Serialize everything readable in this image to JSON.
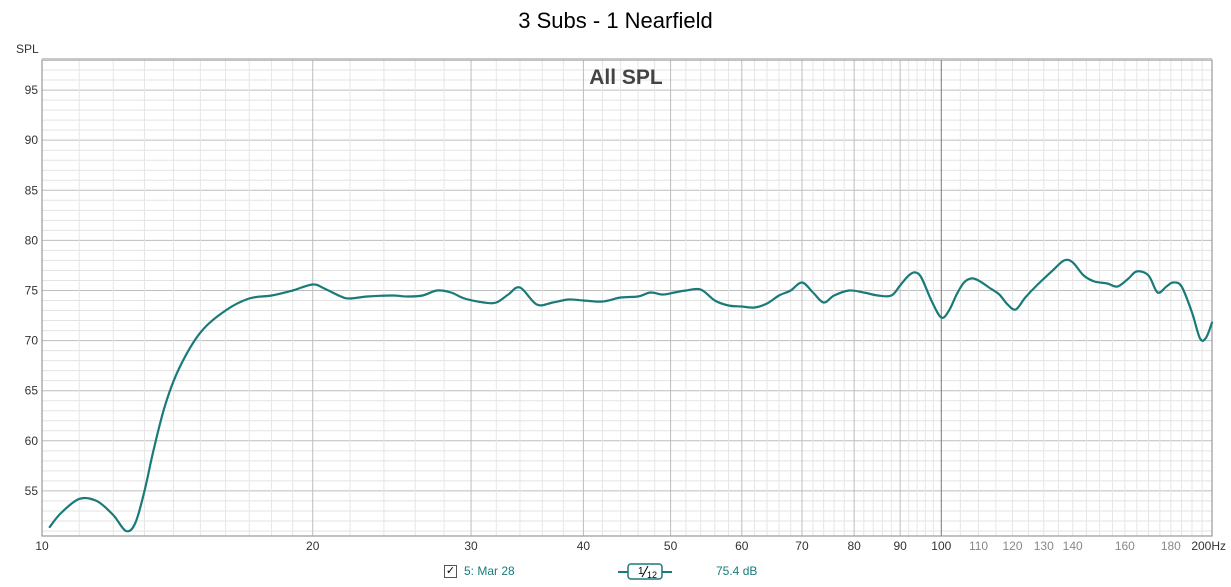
{
  "chart_data": {
    "type": "line",
    "title": "3 Subs - 1 Nearfield",
    "annotation": "All SPL",
    "ylabel": "SPL",
    "x_unit": "Hz",
    "x_scale": "log",
    "xlim": [
      10,
      200
    ],
    "ylim": [
      50.5,
      98
    ],
    "y_ticks": [
      55,
      60,
      65,
      70,
      75,
      80,
      85,
      90,
      95
    ],
    "x_ticks_major": [
      10,
      20,
      30,
      40,
      50,
      60,
      70,
      80,
      90,
      100,
      200
    ],
    "x_ticks_minor": [
      110,
      120,
      130,
      140,
      160,
      180
    ],
    "x_tick_labels": [
      "10",
      "20",
      "30",
      "40",
      "50",
      "60",
      "70",
      "80",
      "90",
      "100",
      "110",
      "120",
      "130",
      "140",
      "160",
      "180",
      "200Hz"
    ],
    "grid": true,
    "series": [
      {
        "name": "5: Mar 28",
        "color": "#1a7a7a",
        "x": [
          10.2,
          10.5,
          11.0,
          11.5,
          12.0,
          12.4,
          12.7,
          13.0,
          13.3,
          13.7,
          14.2,
          15.0,
          16.0,
          17.0,
          18.0,
          19.0,
          20.0,
          20.6,
          21.5,
          22.0,
          23.0,
          24.5,
          25.5,
          26.5,
          27.5,
          28.5,
          29.5,
          31.0,
          32.0,
          33.0,
          34.0,
          35.5,
          37.0,
          38.5,
          40.0,
          42.0,
          44.0,
          46.0,
          47.5,
          49.0,
          50.5,
          52.0,
          54.0,
          56.0,
          58.0,
          60.0,
          62.0,
          64.0,
          66.0,
          68.0,
          70.0,
          72.0,
          74.0,
          76.0,
          79.0,
          82.0,
          85.0,
          88.0,
          90.0,
          92.0,
          93.5,
          95.0,
          97.5,
          100.0,
          102.0,
          104.0,
          106.0,
          108.0,
          110.0,
          113.0,
          116.0,
          118.5,
          121.0,
          124.0,
          128.0,
          133.0,
          137.0,
          140.0,
          144.0,
          148.0,
          153.0,
          157.0,
          161.5,
          165.0,
          170.0,
          174.0,
          178.0,
          181.0,
          185.0,
          190.0,
          194.0,
          197.0,
          200.0
        ],
        "y": [
          51.4,
          52.8,
          54.2,
          54.0,
          52.6,
          51.0,
          51.8,
          55.0,
          59.0,
          63.5,
          67.2,
          70.8,
          73.0,
          74.2,
          74.5,
          75.0,
          75.6,
          75.2,
          74.4,
          74.2,
          74.4,
          74.5,
          74.4,
          74.5,
          75.0,
          74.8,
          74.2,
          73.8,
          73.8,
          74.6,
          75.3,
          73.6,
          73.8,
          74.1,
          74.0,
          73.9,
          74.3,
          74.4,
          74.8,
          74.6,
          74.8,
          75.0,
          75.1,
          74.0,
          73.5,
          73.4,
          73.3,
          73.7,
          74.5,
          75.0,
          75.8,
          74.8,
          73.8,
          74.5,
          75.0,
          74.8,
          74.5,
          74.5,
          75.5,
          76.5,
          76.8,
          76.3,
          74.0,
          72.3,
          73.0,
          74.6,
          75.8,
          76.2,
          76.0,
          75.3,
          74.6,
          73.6,
          73.1,
          74.3,
          75.6,
          77.0,
          78.0,
          77.8,
          76.5,
          75.9,
          75.7,
          75.4,
          76.2,
          76.9,
          76.5,
          74.8,
          75.4,
          75.8,
          75.4,
          72.8,
          70.2,
          70.3,
          71.8
        ]
      }
    ],
    "legend": {
      "checked": true,
      "name": "5: Mar 28",
      "smoothing_num": "1",
      "smoothing_den": "12",
      "level": "75.4 dB"
    }
  }
}
